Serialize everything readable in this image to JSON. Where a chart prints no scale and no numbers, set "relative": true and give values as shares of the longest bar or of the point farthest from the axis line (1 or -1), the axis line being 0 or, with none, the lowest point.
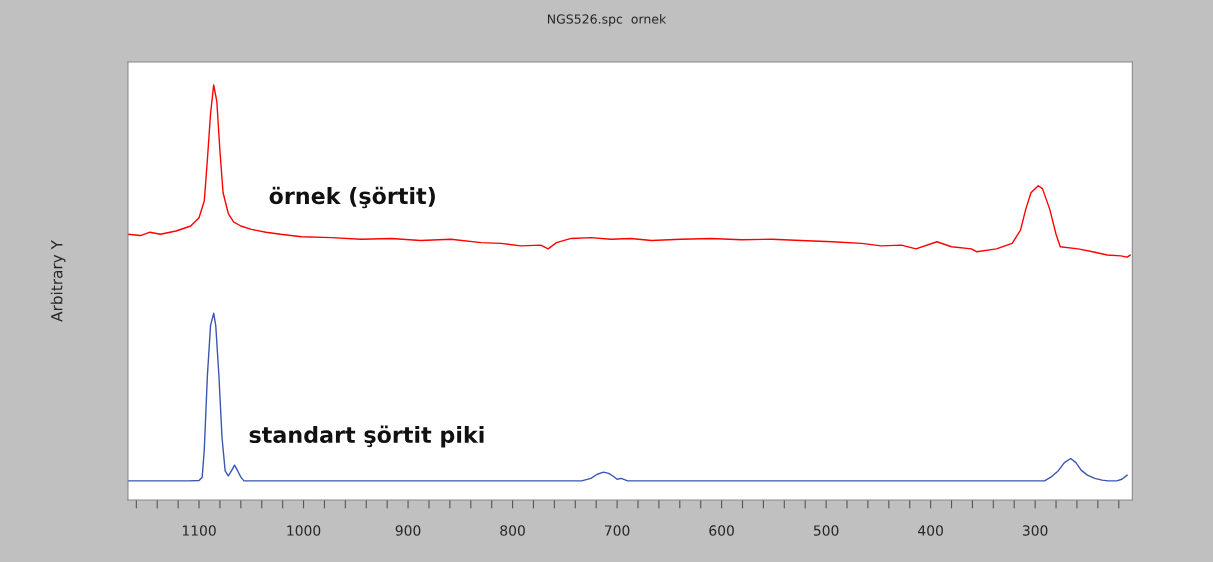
{
  "chart_data": {
    "type": "line",
    "title": "NGS526.spc  ornek",
    "ylabel": "Arbitrary Y",
    "relative": true,
    "grid": false,
    "legend": false,
    "marker": "none",
    "line_style": "solid",
    "xlim": [
      1168,
      207
    ],
    "xticks": [
      {
        "value": 1160,
        "label": null
      },
      {
        "value": 1140,
        "label": null
      },
      {
        "value": 1120,
        "label": null
      },
      1100,
      {
        "value": 1080,
        "label": null
      },
      {
        "value": 1060,
        "label": null
      },
      {
        "value": 1040,
        "label": null
      },
      {
        "value": 1020,
        "label": null
      },
      1000,
      {
        "value": 980,
        "label": null
      },
      {
        "value": 960,
        "label": null
      },
      {
        "value": 940,
        "label": null
      },
      {
        "value": 920,
        "label": null
      },
      900,
      {
        "value": 880,
        "label": null
      },
      {
        "value": 860,
        "label": null
      },
      {
        "value": 840,
        "label": null
      },
      {
        "value": 820,
        "label": null
      },
      800,
      {
        "value": 780,
        "label": null
      },
      {
        "value": 760,
        "label": null
      },
      {
        "value": 740,
        "label": null
      },
      {
        "value": 720,
        "label": null
      },
      700,
      {
        "value": 680,
        "label": null
      },
      {
        "value": 660,
        "label": null
      },
      {
        "value": 640,
        "label": null
      },
      {
        "value": 620,
        "label": null
      },
      600,
      {
        "value": 580,
        "label": null
      },
      {
        "value": 560,
        "label": null
      },
      {
        "value": 540,
        "label": null
      },
      {
        "value": 520,
        "label": null
      },
      500,
      {
        "value": 480,
        "label": null
      },
      {
        "value": 460,
        "label": null
      },
      {
        "value": 440,
        "label": null
      },
      {
        "value": 420,
        "label": null
      },
      400,
      {
        "value": 380,
        "label": null
      },
      {
        "value": 360,
        "label": null
      },
      {
        "value": 340,
        "label": null
      },
      {
        "value": 320,
        "label": null
      },
      300,
      {
        "value": 280,
        "label": null
      },
      {
        "value": 260,
        "label": null
      },
      {
        "value": 240,
        "label": null
      },
      {
        "value": 220,
        "label": null
      }
    ],
    "series": [
      {
        "name": "örnek (şörtit)",
        "color": "#ff0000",
        "x": [
          1168,
          1156,
          1147,
          1137,
          1122,
          1108,
          1100,
          1095,
          1092,
          1089,
          1086,
          1083,
          1080,
          1077,
          1072,
          1067,
          1060,
          1050,
          1036,
          1022,
          1002,
          973,
          945,
          916,
          888,
          859,
          830,
          811,
          792,
          773,
          766,
          758,
          744,
          725,
          706,
          687,
          667,
          639,
          610,
          581,
          552,
          524,
          494,
          466,
          447,
          428,
          414,
          394,
          380,
          361,
          356,
          337,
          322,
          314,
          309,
          304,
          297,
          293,
          286,
          280,
          276,
          259,
          245,
          231,
          218,
          212,
          209
        ],
        "values": [
          0.64,
          0.637,
          0.645,
          0.64,
          0.648,
          0.66,
          0.68,
          0.72,
          0.82,
          0.93,
          1.0,
          0.96,
          0.84,
          0.74,
          0.69,
          0.67,
          0.66,
          0.652,
          0.645,
          0.64,
          0.634,
          0.632,
          0.628,
          0.63,
          0.625,
          0.628,
          0.62,
          0.618,
          0.612,
          0.614,
          0.605,
          0.62,
          0.63,
          0.632,
          0.628,
          0.63,
          0.625,
          0.628,
          0.63,
          0.627,
          0.628,
          0.625,
          0.622,
          0.618,
          0.612,
          0.614,
          0.605,
          0.622,
          0.61,
          0.605,
          0.598,
          0.605,
          0.618,
          0.65,
          0.7,
          0.74,
          0.757,
          0.75,
          0.7,
          0.64,
          0.61,
          0.605,
          0.598,
          0.59,
          0.588,
          0.585,
          0.59
        ]
      },
      {
        "name": "standart şörtit piki",
        "color": "#3a56b0",
        "x": [
          1168,
          1110,
          1100,
          1097,
          1095,
          1092,
          1089,
          1086,
          1084,
          1081,
          1078,
          1075,
          1072,
          1069,
          1066,
          1063,
          1060,
          1057,
          734,
          725,
          719,
          713,
          708,
          703,
          700,
          696,
          690,
          291,
          285,
          278,
          272,
          266,
          261,
          256,
          250,
          243,
          236,
          230,
          222,
          217,
          212
        ],
        "values": [
          0.046,
          0.046,
          0.047,
          0.055,
          0.12,
          0.3,
          0.42,
          0.45,
          0.42,
          0.3,
          0.15,
          0.07,
          0.058,
          0.07,
          0.084,
          0.07,
          0.055,
          0.046,
          0.046,
          0.052,
          0.062,
          0.067,
          0.064,
          0.056,
          0.05,
          0.052,
          0.046,
          0.046,
          0.055,
          0.07,
          0.09,
          0.1,
          0.09,
          0.072,
          0.06,
          0.052,
          0.048,
          0.046,
          0.046,
          0.05,
          0.06
        ]
      }
    ]
  }
}
